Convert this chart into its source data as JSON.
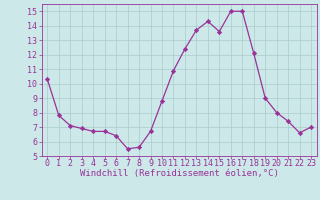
{
  "x": [
    0,
    1,
    2,
    3,
    4,
    5,
    6,
    7,
    8,
    9,
    10,
    11,
    12,
    13,
    14,
    15,
    16,
    17,
    18,
    19,
    20,
    21,
    22,
    23
  ],
  "y": [
    10.3,
    7.8,
    7.1,
    6.9,
    6.7,
    6.7,
    6.4,
    5.5,
    5.6,
    6.7,
    8.8,
    10.9,
    12.4,
    13.7,
    14.3,
    13.6,
    15.0,
    15.0,
    12.1,
    9.0,
    8.0,
    7.4,
    6.6,
    7.0
  ],
  "line_color": "#993399",
  "marker": "D",
  "marker_size": 2.2,
  "bg_color": "#cce8e8",
  "grid_color": "#aacccc",
  "xlabel": "Windchill (Refroidissement éolien,°C)",
  "xlabel_color": "#993399",
  "xlabel_fontsize": 6.5,
  "tick_color": "#993399",
  "tick_fontsize": 6.0,
  "ylim": [
    5,
    15.5
  ],
  "xlim": [
    -0.5,
    23.5
  ],
  "yticks": [
    5,
    6,
    7,
    8,
    9,
    10,
    11,
    12,
    13,
    14,
    15
  ],
  "xticks": [
    0,
    1,
    2,
    3,
    4,
    5,
    6,
    7,
    8,
    9,
    10,
    11,
    12,
    13,
    14,
    15,
    16,
    17,
    18,
    19,
    20,
    21,
    22,
    23
  ]
}
